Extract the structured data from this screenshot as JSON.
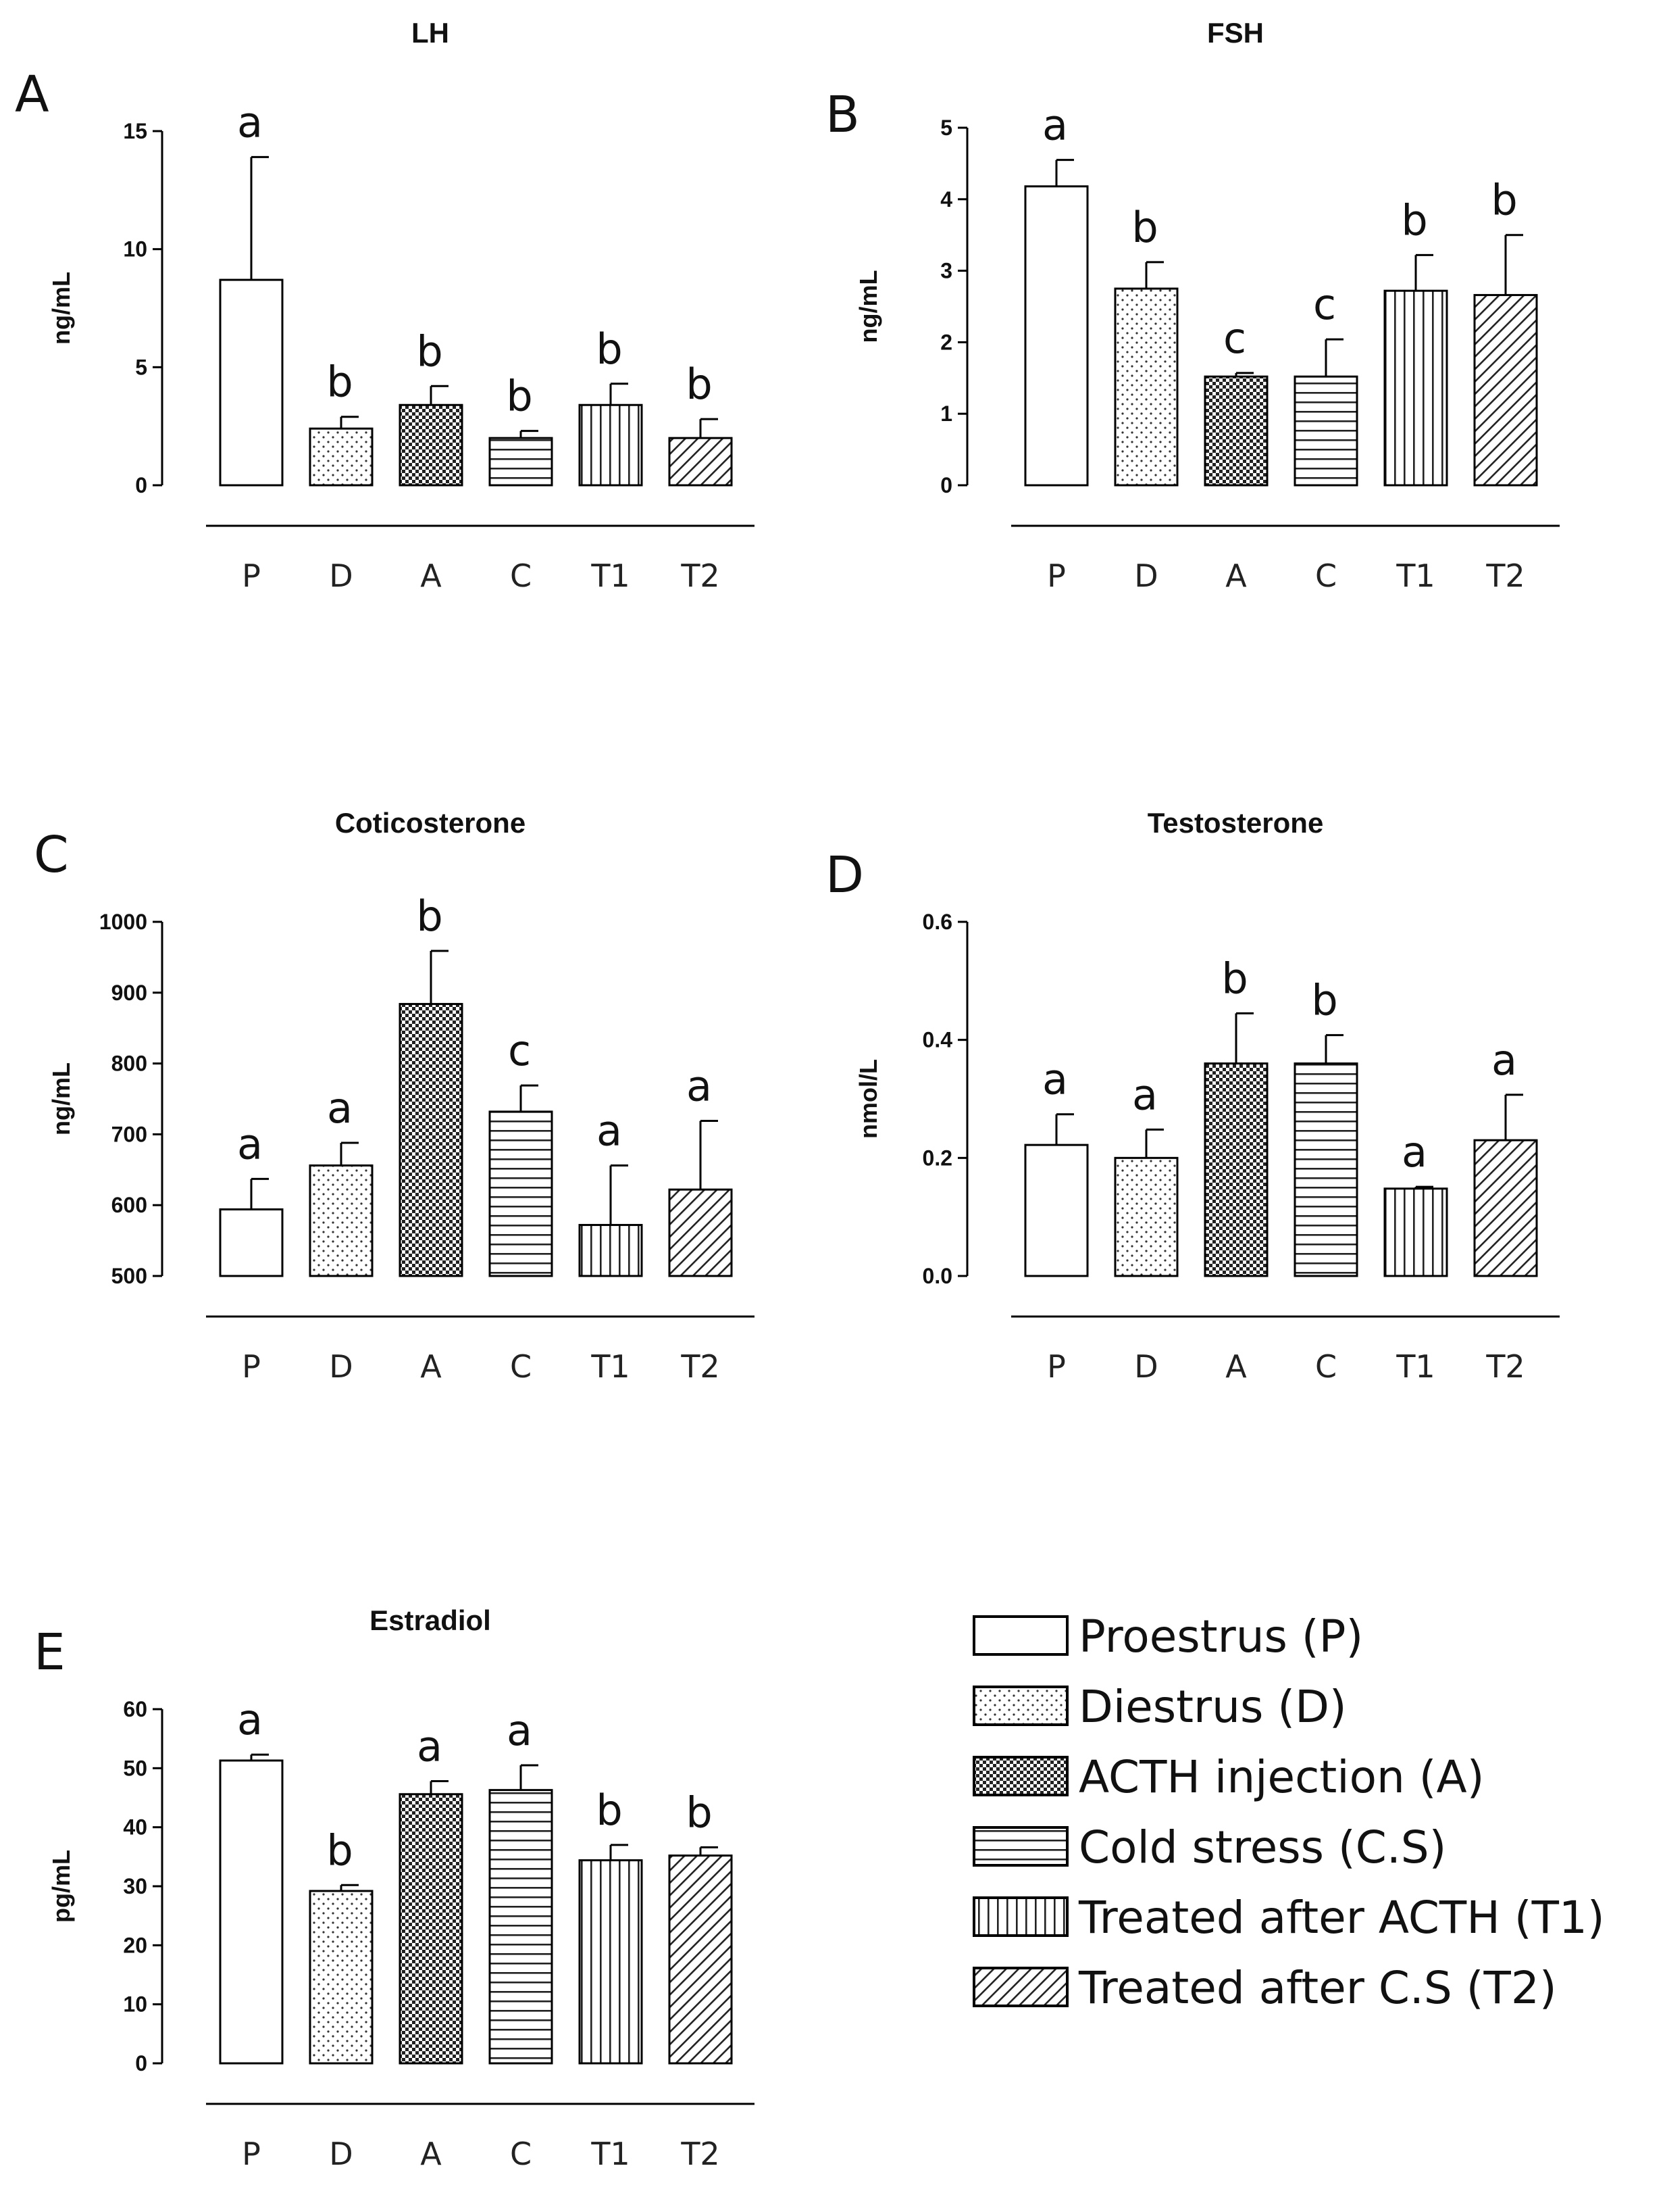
{
  "legend": [
    {
      "key": "P",
      "label": "Proestrus (P)",
      "pattern": "white"
    },
    {
      "key": "D",
      "label": "Diestrus (D)",
      "pattern": "dots"
    },
    {
      "key": "A",
      "label": "ACTH injection (A)",
      "pattern": "checker"
    },
    {
      "key": "C",
      "label": "Cold stress (C.S)",
      "pattern": "hlines"
    },
    {
      "key": "T1",
      "label": "Treated after ACTH (T1)",
      "pattern": "vlines"
    },
    {
      "key": "T2",
      "label": "Treated after C.S (T2)",
      "pattern": "diag"
    }
  ],
  "chart_data": [
    {
      "type": "bar",
      "panel": "A",
      "title": "LH",
      "ylabel": "ng/mL",
      "categories": [
        "P",
        "D",
        "A",
        "C",
        "T1",
        "T2"
      ],
      "values": [
        8.7,
        2.4,
        3.4,
        2.0,
        3.4,
        2.0
      ],
      "errors": [
        5.2,
        0.5,
        0.8,
        0.3,
        0.9,
        0.8
      ],
      "significance": [
        "a",
        "b",
        "b",
        "b",
        "b",
        "b"
      ],
      "ylim": [
        0,
        15
      ],
      "yticks": [
        "0",
        "5",
        "10",
        "15"
      ]
    },
    {
      "type": "bar",
      "panel": "B",
      "title": "FSH",
      "ylabel": "ng/mL",
      "categories": [
        "P",
        "D",
        "A",
        "C",
        "T1",
        "T2"
      ],
      "values": [
        4.18,
        2.75,
        1.52,
        1.52,
        2.72,
        2.66
      ],
      "errors": [
        0.37,
        0.37,
        0.05,
        0.52,
        0.5,
        0.84
      ],
      "significance": [
        "a",
        "b",
        "c",
        "c",
        "b",
        "b"
      ],
      "ylim": [
        0,
        5
      ],
      "yticks": [
        "0",
        "1",
        "2",
        "3",
        "4",
        "5"
      ]
    },
    {
      "type": "bar",
      "panel": "C",
      "title": "Coticosterone",
      "ylabel": "ng/mL",
      "categories": [
        "P",
        "D",
        "A",
        "C",
        "T1",
        "T2"
      ],
      "values": [
        594,
        656,
        884,
        732,
        572,
        622
      ],
      "errors": [
        43,
        32,
        75,
        37,
        84,
        97
      ],
      "significance": [
        "a",
        "a",
        "b",
        "c",
        "a",
        "a"
      ],
      "ylim": [
        500,
        1000
      ],
      "yticks": [
        "500",
        "600",
        "700",
        "800",
        "900",
        "1000"
      ]
    },
    {
      "type": "bar",
      "panel": "D",
      "title": "Testosterone",
      "ylabel": "nmol/L",
      "categories": [
        "P",
        "D",
        "A",
        "C",
        "T1",
        "T2"
      ],
      "values": [
        0.222,
        0.2,
        0.36,
        0.36,
        0.148,
        0.23
      ],
      "errors": [
        0.052,
        0.048,
        0.085,
        0.048,
        0.003,
        0.077
      ],
      "significance": [
        "a",
        "a",
        "b",
        "b",
        "a",
        "a"
      ],
      "ylim": [
        0,
        0.6
      ],
      "yticks": [
        "0.0",
        "0.2",
        "0.4",
        "0.6"
      ]
    },
    {
      "type": "bar",
      "panel": "E",
      "title": "Estradiol",
      "ylabel": "pg/mL",
      "categories": [
        "P",
        "D",
        "A",
        "C",
        "T1",
        "T2"
      ],
      "values": [
        51.3,
        29.2,
        45.6,
        46.3,
        34.4,
        35.2
      ],
      "errors": [
        1.0,
        1.0,
        2.2,
        4.2,
        2.6,
        1.4
      ],
      "significance": [
        "a",
        "b",
        "a",
        "a",
        "b",
        "b"
      ],
      "ylim": [
        0,
        60
      ],
      "yticks": [
        "0",
        "10",
        "20",
        "30",
        "40",
        "50",
        "60"
      ]
    }
  ]
}
